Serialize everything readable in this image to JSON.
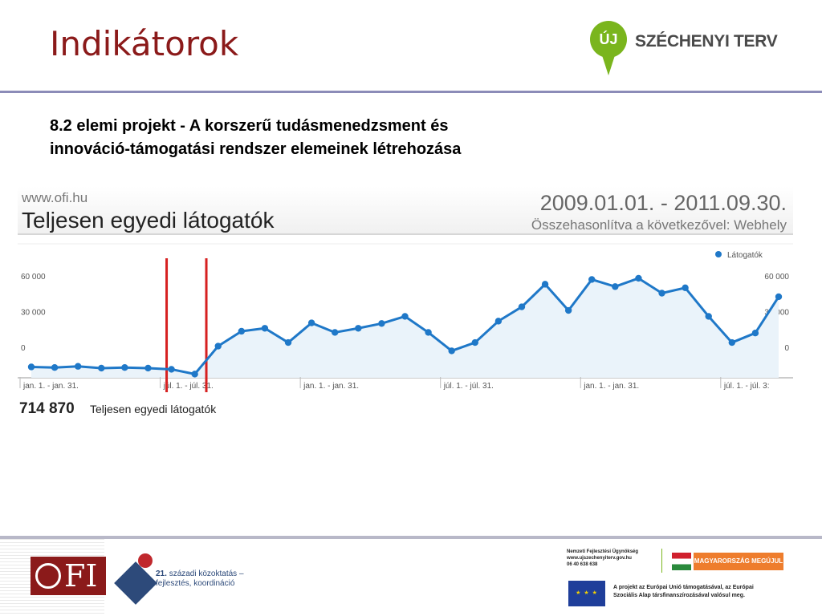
{
  "header": {
    "title": "Indikátorok",
    "logo_mark": "ÚJ",
    "logo_name": "SZÉCHENYI TERV"
  },
  "subtitle": {
    "line1": "8.2 elemi projekt - A korszerű tudásmenedzsment és",
    "line2": "innováció-támogatási rendszer elemeinek létrehozása"
  },
  "chart_data": {
    "type": "line",
    "site": "www.ofi.hu",
    "title": "Teljesen egyedi látogatók",
    "date_range": "2009.01.01. - 2011.09.30.",
    "comparison": "Összehasonlítva a következővel: Webhely",
    "legend": "Látogatók",
    "legend_position": "top-right",
    "y_ticks_left": [
      "60 000",
      "30 000",
      "0"
    ],
    "y_ticks_right": [
      "60 000",
      "30 000",
      "0"
    ],
    "ylim": [
      -25000,
      60000
    ],
    "x_labels": [
      "jan. 1. - jan. 31.",
      "júl. 1. - júl. 31.",
      "jan. 1. - jan. 31.",
      "júl. 1. - júl. 31.",
      "jan. 1. - jan. 31.",
      "júl. 1. - júl. 3:"
    ],
    "x_label_month_index": [
      0,
      6,
      12,
      18,
      24,
      30
    ],
    "series": [
      {
        "name": "Látogatók",
        "color": "#1f78c8",
        "values": [
          -16500,
          -17000,
          -16000,
          -17500,
          -17000,
          -17500,
          -18500,
          -22500,
          1000,
          13500,
          16000,
          4000,
          20500,
          12500,
          16000,
          20000,
          26000,
          12500,
          -3000,
          4000,
          22000,
          34000,
          53000,
          31000,
          57000,
          51000,
          58000,
          45500,
          50000,
          26000,
          4000,
          12000,
          42500
        ]
      }
    ],
    "markers": [
      {
        "month_index": 6.0,
        "color": "#d62020"
      },
      {
        "month_index": 7.7,
        "color": "#d62020"
      }
    ],
    "total_value": "714 870",
    "total_label": "Teljesen egyedi látogatók"
  },
  "footer": {
    "ofi_text": "FI",
    "k21_num": "21.",
    "k21_line1": "századi közoktatás –",
    "k21_line2": "fejlesztés, koordináció",
    "agency_l1": "Nemzeti Fejlesztési Ügynökség",
    "agency_l2": "www.ujszechenyiterv.gov.hu",
    "agency_l3": "06 40 638 638",
    "mm_label": "MAGYARORSZÁG MEGÚJUL",
    "eu_text_l1": "A projekt az Európai Unió támogatásával, az Európai",
    "eu_text_l2": "Szociális Alap társfinanszírozásával valósul meg.",
    "eu_stars": "★ ★ ★"
  }
}
